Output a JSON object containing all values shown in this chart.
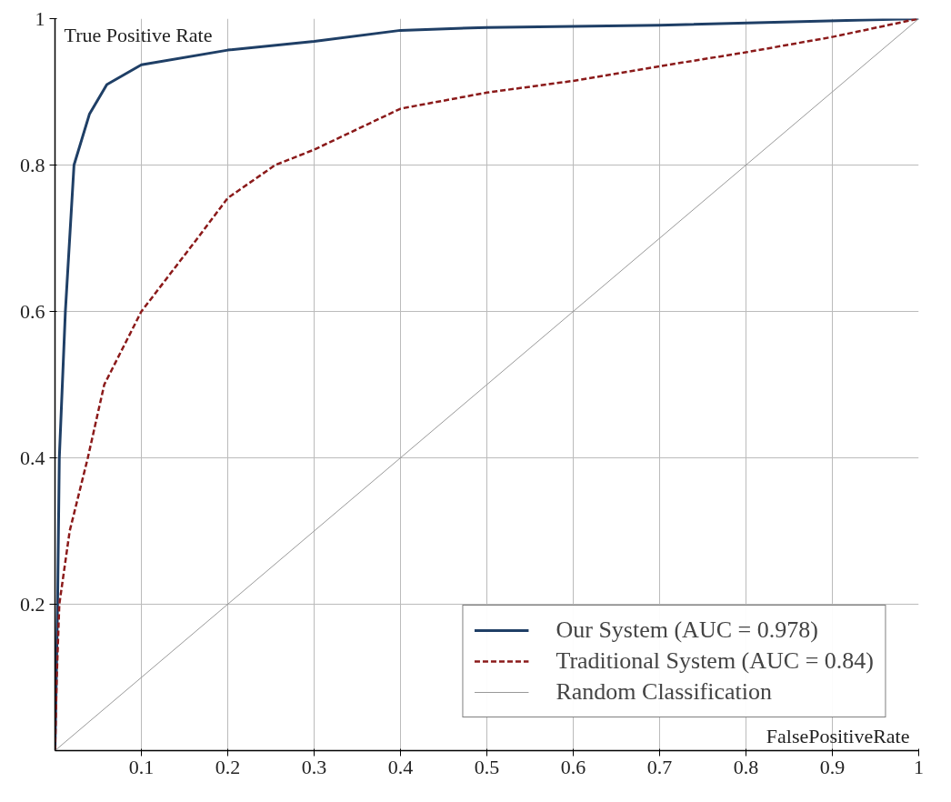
{
  "chart_data": {
    "type": "line",
    "xlabel": "FalsePositiveRate",
    "ylabel": "True Positive Rate",
    "xlim": [
      0,
      1
    ],
    "ylim": [
      0,
      1
    ],
    "xticks": [
      0.1,
      0.2,
      0.3,
      0.4,
      0.5,
      0.6,
      0.7,
      0.8,
      0.9,
      1
    ],
    "yticks": [
      0.2,
      0.4,
      0.6,
      0.8,
      1
    ],
    "grid": true,
    "legend": "bottom right",
    "series": [
      {
        "name": "Our System (AUC = 0.978)",
        "color": "#1f3f66",
        "line_style": "solid",
        "x": [
          0,
          0.003,
          0.005,
          0.012,
          0.022,
          0.04,
          0.06,
          0.1,
          0.2,
          0.3,
          0.4,
          0.5,
          0.7,
          1
        ],
        "values": [
          0,
          0.2,
          0.4,
          0.6,
          0.8,
          0.87,
          0.91,
          0.937,
          0.957,
          0.969,
          0.984,
          0.988,
          0.991,
          1
        ]
      },
      {
        "name": "Traditional System (AUC = 0.84)",
        "color": "#8b1a1a",
        "line_style": "dashed",
        "x": [
          0,
          0.002,
          0.005,
          0.017,
          0.038,
          0.057,
          0.1,
          0.165,
          0.2,
          0.255,
          0.3,
          0.4,
          0.5,
          0.6,
          0.7,
          0.8,
          0.9,
          1
        ],
        "values": [
          0,
          0.1,
          0.2,
          0.3,
          0.4,
          0.5,
          0.6,
          0.7,
          0.755,
          0.8,
          0.821,
          0.877,
          0.899,
          0.915,
          0.935,
          0.954,
          0.975,
          1
        ]
      },
      {
        "name": "Random Classification",
        "color": "#999999",
        "line_style": "solid",
        "x": [
          0,
          1
        ],
        "values": [
          0,
          1
        ]
      }
    ]
  }
}
